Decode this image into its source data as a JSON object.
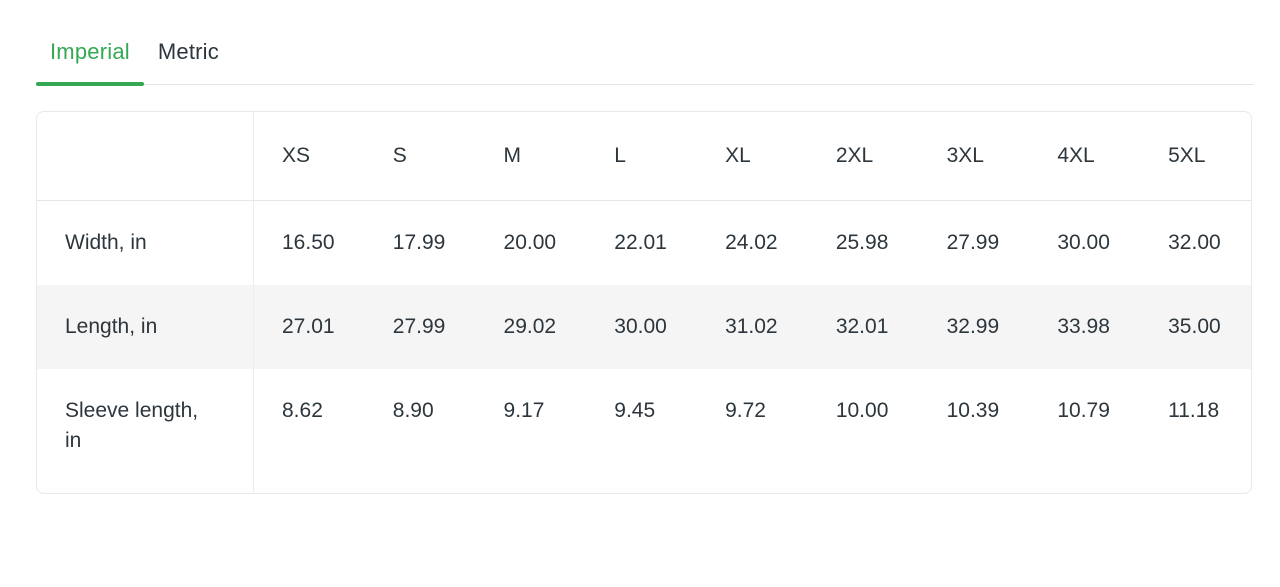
{
  "tabs": {
    "imperial": "Imperial",
    "metric": "Metric",
    "active": "Imperial"
  },
  "table": {
    "columns": [
      "XS",
      "S",
      "M",
      "L",
      "XL",
      "2XL",
      "3XL",
      "4XL",
      "5XL"
    ],
    "rows": [
      {
        "label": "Width, in",
        "values": [
          "16.50",
          "17.99",
          "20.00",
          "22.01",
          "24.02",
          "25.98",
          "27.99",
          "30.00",
          "32.00"
        ]
      },
      {
        "label": "Length, in",
        "values": [
          "27.01",
          "27.99",
          "29.02",
          "30.00",
          "31.02",
          "32.01",
          "32.99",
          "33.98",
          "35.00"
        ]
      },
      {
        "label": "Sleeve length, in",
        "values": [
          "8.62",
          "8.90",
          "9.17",
          "9.45",
          "9.72",
          "10.00",
          "10.39",
          "10.79",
          "11.18"
        ]
      }
    ]
  },
  "colors": {
    "accent_green": "#34a853",
    "text": "#2c363c",
    "stripe": "#f5f5f5",
    "border": "#e9e9e9"
  }
}
